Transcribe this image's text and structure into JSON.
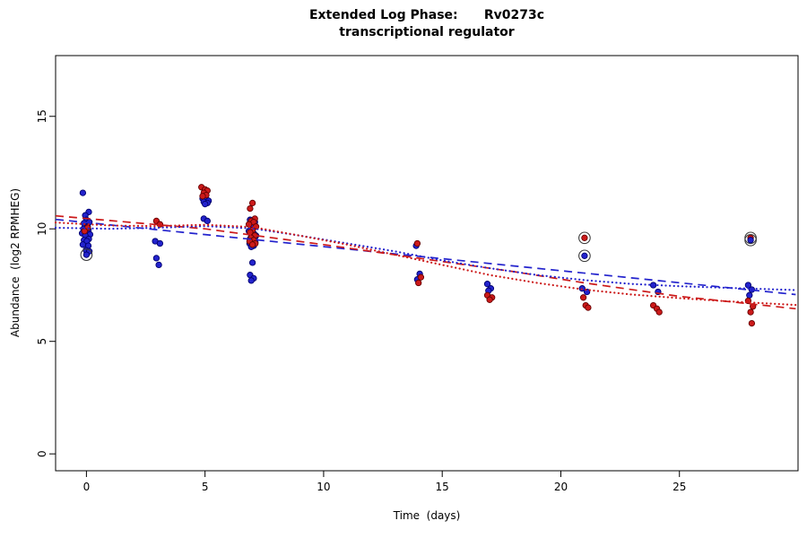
{
  "chart_data": {
    "type": "scatter",
    "title": "Extended Log Phase:      Rv0273c",
    "subtitle": "transcriptional regulator",
    "xlabel": "Time  (days)",
    "ylabel": "Abundance  (log2 RPMHEG)",
    "xlim": [
      -1.3,
      30.0
    ],
    "ylim": [
      -0.75,
      17.7
    ],
    "xticks": [
      0,
      5,
      10,
      15,
      20,
      25
    ],
    "yticks": [
      0,
      5,
      10,
      15
    ],
    "grid": false,
    "legend": "none",
    "colors": {
      "blue": "#2323CD",
      "blue_edge": "#00006E",
      "red": "#CC1A1A",
      "red_edge": "#660000",
      "ring": "#3C3C3C",
      "axis": "#000000"
    },
    "series": [
      {
        "name": "condition-blue",
        "color_key": "blue",
        "points": [
          [
            -0.15,
            11.6
          ],
          [
            0.1,
            10.75
          ],
          [
            -0.05,
            10.6
          ],
          [
            0.0,
            10.4
          ],
          [
            0.12,
            10.3
          ],
          [
            -0.1,
            10.25
          ],
          [
            0.05,
            10.1
          ],
          [
            -0.12,
            10.0
          ],
          [
            0.08,
            9.95
          ],
          [
            0.0,
            9.9
          ],
          [
            -0.18,
            9.8
          ],
          [
            0.15,
            9.75
          ],
          [
            -0.05,
            9.7
          ],
          [
            0.1,
            9.55
          ],
          [
            -0.1,
            9.5
          ],
          [
            0.02,
            9.45
          ],
          [
            -0.15,
            9.3
          ],
          [
            0.08,
            9.25
          ],
          [
            -0.02,
            9.05
          ],
          [
            0.12,
            9.0
          ],
          [
            2.9,
            9.45
          ],
          [
            3.1,
            9.35
          ],
          [
            2.95,
            8.7
          ],
          [
            3.05,
            8.4
          ],
          [
            4.9,
            11.35
          ],
          [
            5.05,
            11.3
          ],
          [
            5.15,
            11.25
          ],
          [
            4.95,
            11.2
          ],
          [
            5.1,
            11.15
          ],
          [
            5.0,
            11.1
          ],
          [
            4.95,
            10.45
          ],
          [
            5.1,
            10.35
          ],
          [
            6.9,
            10.4
          ],
          [
            7.1,
            10.3
          ],
          [
            7.0,
            10.15
          ],
          [
            6.85,
            9.9
          ],
          [
            7.05,
            9.8
          ],
          [
            7.15,
            9.7
          ],
          [
            6.95,
            9.65
          ],
          [
            7.1,
            9.6
          ],
          [
            6.9,
            9.55
          ],
          [
            7.0,
            9.5
          ],
          [
            7.12,
            9.4
          ],
          [
            6.88,
            9.35
          ],
          [
            7.05,
            9.25
          ],
          [
            6.95,
            9.2
          ],
          [
            7.0,
            8.5
          ],
          [
            6.9,
            7.95
          ],
          [
            7.05,
            7.8
          ],
          [
            6.95,
            7.7
          ],
          [
            13.9,
            9.25
          ],
          [
            14.05,
            8.0
          ],
          [
            13.95,
            7.75
          ],
          [
            16.9,
            7.55
          ],
          [
            17.05,
            7.35
          ],
          [
            16.95,
            7.25
          ],
          [
            20.9,
            7.35
          ],
          [
            21.1,
            7.2
          ],
          [
            23.9,
            7.5
          ],
          [
            24.1,
            7.2
          ],
          [
            27.9,
            7.5
          ],
          [
            28.05,
            7.3
          ],
          [
            27.95,
            7.05
          ]
        ]
      },
      {
        "name": "condition-red",
        "color_key": "red",
        "points": [
          [
            0.05,
            10.05
          ],
          [
            -0.08,
            9.9
          ],
          [
            2.95,
            10.35
          ],
          [
            3.1,
            10.2
          ],
          [
            4.85,
            11.85
          ],
          [
            5.0,
            11.75
          ],
          [
            5.1,
            11.7
          ],
          [
            4.95,
            11.6
          ],
          [
            5.05,
            11.5
          ],
          [
            4.9,
            11.45
          ],
          [
            7.0,
            11.15
          ],
          [
            6.9,
            10.9
          ],
          [
            7.1,
            10.45
          ],
          [
            6.95,
            10.35
          ],
          [
            7.05,
            10.3
          ],
          [
            6.85,
            10.2
          ],
          [
            7.15,
            10.1
          ],
          [
            7.0,
            9.95
          ],
          [
            6.9,
            9.85
          ],
          [
            7.1,
            9.7
          ],
          [
            6.95,
            9.6
          ],
          [
            7.05,
            9.5
          ],
          [
            6.88,
            9.45
          ],
          [
            7.12,
            9.35
          ],
          [
            7.0,
            9.3
          ],
          [
            13.95,
            9.35
          ],
          [
            14.1,
            7.85
          ],
          [
            14.0,
            7.6
          ],
          [
            16.9,
            7.05
          ],
          [
            17.1,
            6.95
          ],
          [
            17.0,
            6.85
          ],
          [
            20.95,
            6.95
          ],
          [
            21.05,
            6.6
          ],
          [
            21.15,
            6.5
          ],
          [
            23.9,
            6.6
          ],
          [
            24.05,
            6.45
          ],
          [
            24.15,
            6.3
          ],
          [
            27.9,
            6.8
          ],
          [
            28.1,
            6.55
          ],
          [
            28.0,
            6.3
          ],
          [
            28.05,
            5.8
          ]
        ]
      }
    ],
    "circled_points": [
      {
        "x": 0.0,
        "y": 8.85,
        "color_key": "blue"
      },
      {
        "x": 21.0,
        "y": 9.6,
        "color_key": "red"
      },
      {
        "x": 21.0,
        "y": 8.8,
        "color_key": "blue"
      },
      {
        "x": 28.0,
        "y": 9.6,
        "color_key": "red"
      },
      {
        "x": 28.0,
        "y": 9.5,
        "color_key": "blue"
      }
    ],
    "trend_lines": [
      {
        "name": "blue-dashed",
        "color_key": "blue",
        "style": "dashed",
        "points": [
          [
            -1.3,
            10.42
          ],
          [
            14,
            8.78
          ],
          [
            29.9,
            7.08
          ]
        ]
      },
      {
        "name": "red-dashed",
        "color_key": "red",
        "style": "dashed",
        "points": [
          [
            -1.3,
            10.58
          ],
          [
            5,
            10.0
          ],
          [
            10,
            9.3
          ],
          [
            14,
            8.7
          ],
          [
            18,
            8.1
          ],
          [
            21,
            7.6
          ],
          [
            25,
            7.0
          ],
          [
            29.9,
            6.45
          ]
        ]
      },
      {
        "name": "blue-dotted",
        "color_key": "blue",
        "style": "dotted",
        "points": [
          [
            -1.3,
            10.05
          ],
          [
            1,
            10.0
          ],
          [
            3,
            10.05
          ],
          [
            5,
            10.12
          ],
          [
            7,
            10.02
          ],
          [
            9,
            9.7
          ],
          [
            11,
            9.35
          ],
          [
            13,
            9.0
          ],
          [
            15,
            8.6
          ],
          [
            17,
            8.25
          ],
          [
            19,
            7.95
          ],
          [
            21,
            7.72
          ],
          [
            23,
            7.55
          ],
          [
            25,
            7.45
          ],
          [
            27,
            7.38
          ],
          [
            29.9,
            7.28
          ]
        ]
      },
      {
        "name": "red-dotted",
        "color_key": "red",
        "style": "dotted",
        "points": [
          [
            -1.3,
            10.28
          ],
          [
            1,
            10.15
          ],
          [
            3,
            10.12
          ],
          [
            5,
            10.18
          ],
          [
            7,
            10.08
          ],
          [
            9,
            9.7
          ],
          [
            11,
            9.3
          ],
          [
            13,
            8.85
          ],
          [
            15,
            8.4
          ],
          [
            17,
            7.95
          ],
          [
            19,
            7.6
          ],
          [
            21,
            7.3
          ],
          [
            23,
            7.08
          ],
          [
            25,
            6.92
          ],
          [
            27,
            6.78
          ],
          [
            29.9,
            6.62
          ]
        ]
      }
    ]
  }
}
